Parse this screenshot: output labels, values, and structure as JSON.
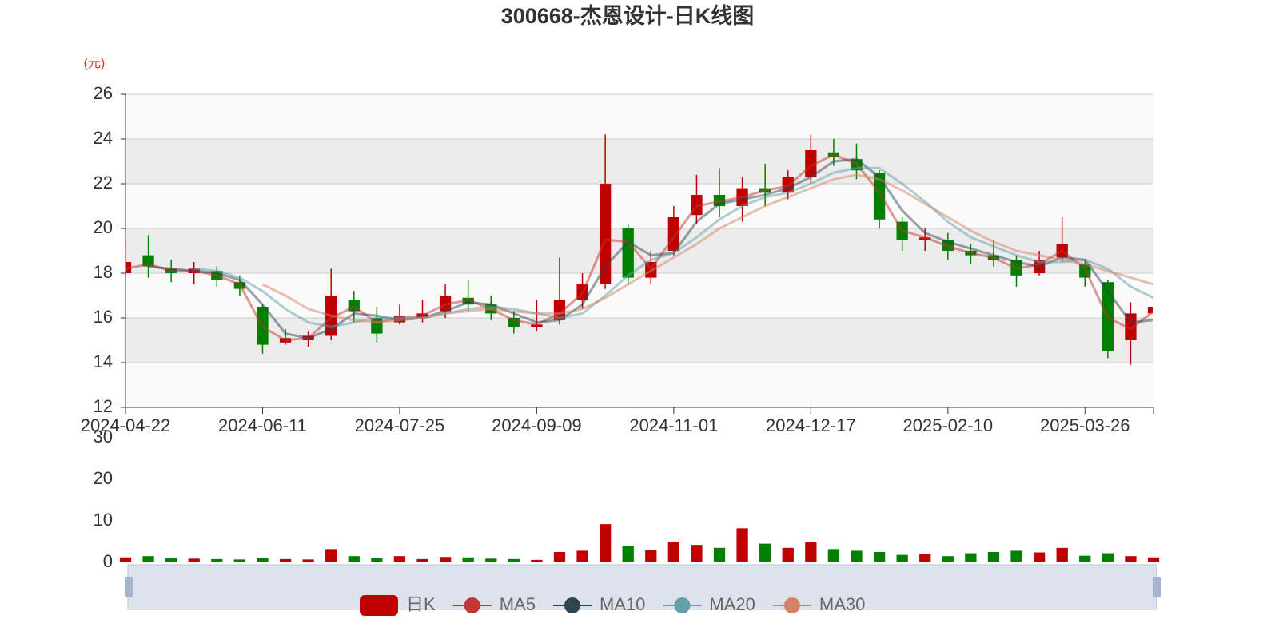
{
  "chart_data": [
    {
      "type": "candlestick",
      "title": "300668-杰恩设计-日K线图",
      "y_unit": "(元)",
      "categories": [
        "2024-04-22",
        null,
        null,
        null,
        null,
        null,
        "2024-06-11",
        null,
        null,
        null,
        null,
        null,
        "2024-07-25",
        null,
        null,
        null,
        null,
        null,
        "2024-09-09",
        null,
        null,
        null,
        null,
        null,
        "2024-11-01",
        null,
        null,
        null,
        null,
        null,
        "2024-12-17",
        null,
        null,
        null,
        null,
        null,
        "2025-02-10",
        null,
        null,
        null,
        null,
        null,
        "2025-03-26",
        null,
        null,
        null
      ],
      "ylim": [
        12,
        26
      ],
      "yticks": [
        12,
        14,
        16,
        18,
        20,
        22,
        24,
        26
      ],
      "split_area": true,
      "series": [
        {
          "name": "日K",
          "up_color": "#c00000",
          "down_color": "#008000",
          "values": [
            [
              18.0,
              18.5,
              17.9,
              19.4
            ],
            [
              18.8,
              18.3,
              17.8,
              19.7
            ],
            [
              18.2,
              18.0,
              17.6,
              18.6
            ],
            [
              18.0,
              18.2,
              17.5,
              18.5
            ],
            [
              18.1,
              17.7,
              17.4,
              18.3
            ],
            [
              17.6,
              17.3,
              17.0,
              17.9
            ],
            [
              16.5,
              14.8,
              14.4,
              16.6
            ],
            [
              14.9,
              15.1,
              14.8,
              15.5
            ],
            [
              15.0,
              15.2,
              14.7,
              15.4
            ],
            [
              15.2,
              17.0,
              15.0,
              18.2
            ],
            [
              16.8,
              16.3,
              15.8,
              17.2
            ],
            [
              16.0,
              15.3,
              14.9,
              16.5
            ],
            [
              15.8,
              16.1,
              15.7,
              16.6
            ],
            [
              16.0,
              16.2,
              15.8,
              16.8
            ],
            [
              16.3,
              17.0,
              16.0,
              17.5
            ],
            [
              16.9,
              16.6,
              16.3,
              17.7
            ],
            [
              16.6,
              16.2,
              15.9,
              17.0
            ],
            [
              16.0,
              15.6,
              15.3,
              16.3
            ],
            [
              15.6,
              15.7,
              15.4,
              16.8
            ],
            [
              15.9,
              16.8,
              15.7,
              18.7
            ],
            [
              16.8,
              17.5,
              16.4,
              18.0
            ],
            [
              17.5,
              22.0,
              17.3,
              24.2
            ],
            [
              20.0,
              17.8,
              17.5,
              20.2
            ],
            [
              17.8,
              18.5,
              17.5,
              19.0
            ],
            [
              19.0,
              20.5,
              18.8,
              21.0
            ],
            [
              20.6,
              21.5,
              20.2,
              22.4
            ],
            [
              21.5,
              21.0,
              20.5,
              22.7
            ],
            [
              21.0,
              21.8,
              20.3,
              22.3
            ],
            [
              21.8,
              21.6,
              21.0,
              22.9
            ],
            [
              21.6,
              22.3,
              21.3,
              22.6
            ],
            [
              22.3,
              23.5,
              22.0,
              24.2
            ],
            [
              23.4,
              23.2,
              22.8,
              24.0
            ],
            [
              23.1,
              22.6,
              22.2,
              23.8
            ],
            [
              22.5,
              20.4,
              20.0,
              22.6
            ],
            [
              20.3,
              19.5,
              19.0,
              20.5
            ],
            [
              19.5,
              19.6,
              19.0,
              20.0
            ],
            [
              19.5,
              19.0,
              18.6,
              19.8
            ],
            [
              19.0,
              18.8,
              18.4,
              19.3
            ],
            [
              18.8,
              18.6,
              18.3,
              19.5
            ],
            [
              18.6,
              17.9,
              17.4,
              18.8
            ],
            [
              18.0,
              18.6,
              17.9,
              19.0
            ],
            [
              18.7,
              19.3,
              18.5,
              20.5
            ],
            [
              18.4,
              17.8,
              17.4,
              18.6
            ],
            [
              17.6,
              14.5,
              14.2,
              17.7
            ],
            [
              15.0,
              16.2,
              13.9,
              16.7
            ],
            [
              16.2,
              16.5,
              15.9,
              16.8
            ]
          ]
        },
        {
          "name": "MA5",
          "color": "#c23531",
          "values": [
            18.2,
            18.4,
            18.1,
            18.1,
            17.9,
            17.5,
            15.6,
            15.0,
            15.1,
            16.0,
            16.5,
            15.8,
            16.0,
            16.1,
            16.6,
            16.8,
            16.4,
            15.9,
            15.7,
            16.2,
            17.1,
            19.5,
            19.4,
            18.2,
            19.6,
            21.0,
            21.2,
            21.4,
            21.7,
            21.9,
            22.8,
            23.3,
            22.9,
            21.6,
            19.9,
            19.6,
            19.2,
            18.9,
            18.7,
            18.2,
            18.4,
            19.0,
            18.2,
            16.0,
            15.5,
            16.3
          ]
        },
        {
          "name": "MA10",
          "color": "#2f4554",
          "values": [
            null,
            18.3,
            18.2,
            18.1,
            18.0,
            17.7,
            16.6,
            15.3,
            15.1,
            15.5,
            16.2,
            16.1,
            15.9,
            16.0,
            16.3,
            16.7,
            16.6,
            16.2,
            15.8,
            15.9,
            16.6,
            18.3,
            19.4,
            18.8,
            18.9,
            20.3,
            21.1,
            21.3,
            21.5,
            21.8,
            22.3,
            23.0,
            23.1,
            22.3,
            20.8,
            19.8,
            19.4,
            19.1,
            18.8,
            18.5,
            18.3,
            18.7,
            18.6,
            17.2,
            15.8,
            15.9
          ]
        },
        {
          "name": "MA20",
          "color": "#61a0a8",
          "values": [
            null,
            null,
            null,
            18.2,
            18.1,
            17.8,
            17.2,
            16.4,
            15.8,
            15.6,
            15.8,
            16.0,
            16.0,
            16.0,
            16.2,
            16.4,
            16.5,
            16.4,
            16.2,
            16.0,
            16.2,
            17.0,
            17.9,
            18.6,
            18.9,
            19.6,
            20.4,
            21.0,
            21.4,
            21.6,
            22.0,
            22.5,
            22.7,
            22.7,
            22.0,
            21.2,
            20.3,
            19.6,
            19.2,
            18.8,
            18.5,
            18.5,
            18.6,
            18.2,
            17.4,
            16.9
          ]
        },
        {
          "name": "MA30",
          "color": "#d48265",
          "values": [
            null,
            null,
            null,
            null,
            null,
            null,
            17.5,
            17.0,
            16.4,
            16.1,
            15.9,
            15.8,
            15.9,
            16.0,
            16.2,
            16.3,
            16.4,
            16.3,
            16.2,
            16.2,
            16.4,
            16.9,
            17.5,
            18.1,
            18.7,
            19.3,
            20.0,
            20.5,
            21.0,
            21.4,
            21.8,
            22.2,
            22.4,
            22.2,
            21.7,
            21.1,
            20.5,
            19.9,
            19.4,
            19.0,
            18.8,
            18.6,
            18.4,
            18.1,
            17.8,
            17.5
          ]
        }
      ]
    },
    {
      "type": "bar",
      "ylim": [
        0,
        30
      ],
      "yticks": [
        0,
        10,
        20,
        30
      ],
      "values": [
        1.2,
        1.5,
        1.0,
        0.9,
        0.8,
        0.7,
        1.0,
        0.8,
        0.7,
        3.2,
        1.5,
        1.0,
        1.5,
        0.8,
        1.3,
        1.2,
        0.9,
        0.8,
        0.6,
        2.5,
        2.8,
        9.2,
        4.0,
        3.0,
        5.0,
        4.2,
        3.5,
        8.2,
        4.5,
        3.5,
        4.8,
        3.2,
        2.8,
        2.5,
        1.8,
        2.0,
        1.5,
        2.2,
        2.5,
        2.8,
        2.4,
        3.5,
        1.6,
        2.2,
        1.5,
        1.2
      ]
    }
  ]
}
